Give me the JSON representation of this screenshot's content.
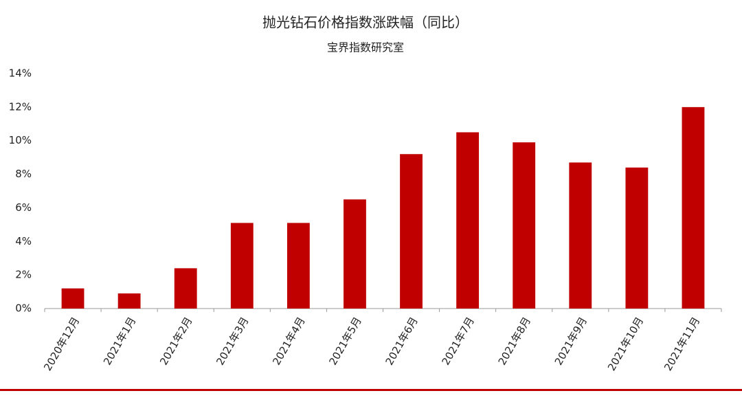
{
  "chart_data": {
    "type": "bar",
    "title": "抛光钻石价格指数涨跌幅（同比）",
    "subtitle": "宝界指数研究室",
    "categories": [
      "2020年12月",
      "2021年1月",
      "2021年2月",
      "2021年3月",
      "2021年4月",
      "2021年5月",
      "2021年6月",
      "2021年7月",
      "2021年8月",
      "2021年9月",
      "2021年10月",
      "2021年11月"
    ],
    "values": [
      1.2,
      0.9,
      2.4,
      5.1,
      5.1,
      6.5,
      9.2,
      10.5,
      9.9,
      8.7,
      8.4,
      12.0
    ],
    "color": "#c00000",
    "ylim": [
      0,
      14
    ],
    "yticks": [
      {
        "value": 0,
        "label": "0%"
      },
      {
        "value": 2,
        "label": "2%"
      },
      {
        "value": 4,
        "label": "4%"
      },
      {
        "value": 6,
        "label": "6%"
      },
      {
        "value": 8,
        "label": "8%"
      },
      {
        "value": 10,
        "label": "10%"
      },
      {
        "value": 12,
        "label": "12%"
      },
      {
        "value": 14,
        "label": "14%"
      }
    ],
    "grid": false
  }
}
